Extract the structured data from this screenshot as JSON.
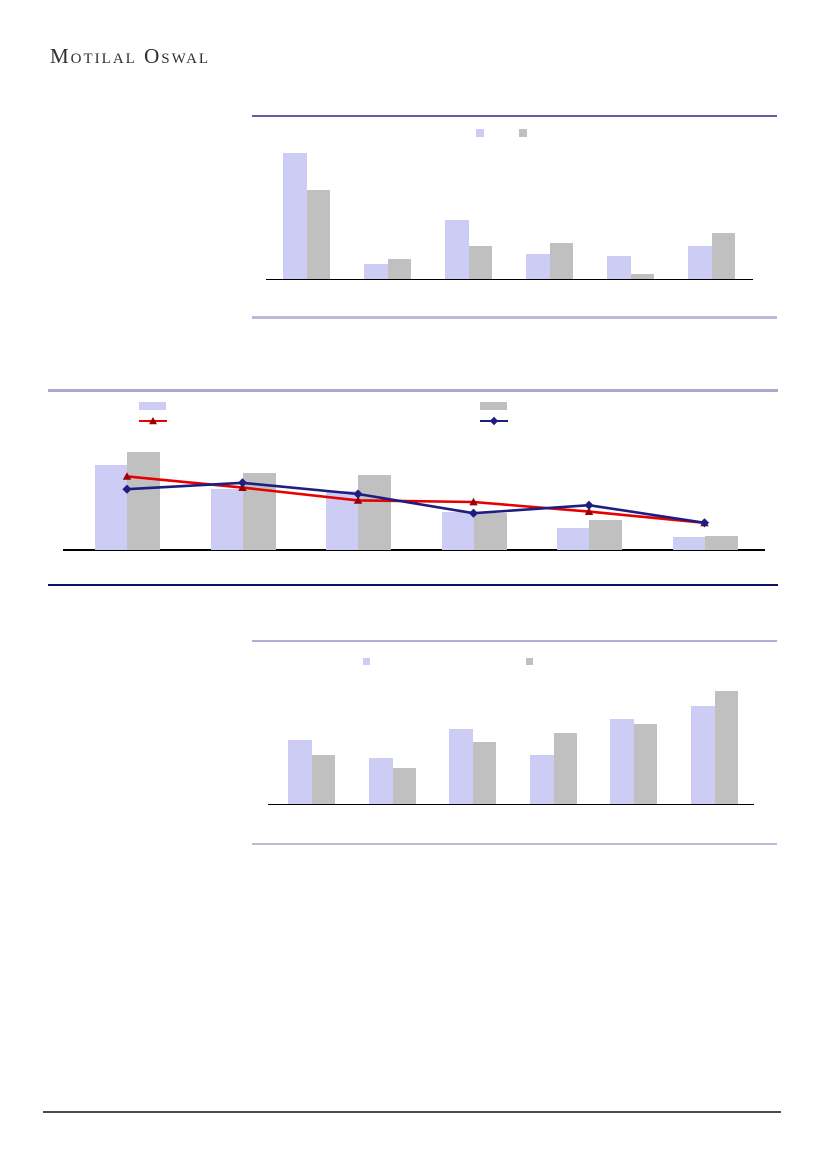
{
  "page": {
    "brand": "Motilal Oswal",
    "background_color": "#ffffff",
    "footer_rule_color": "#4d4d4d"
  },
  "chart_data": [
    {
      "type": "bar",
      "title": "",
      "categories": [
        "",
        "",
        "",
        "",
        "",
        ""
      ],
      "legend_position": "top-center",
      "legend_labels_visible": false,
      "axis_text_visible": false,
      "grid": false,
      "ylim": [
        0,
        100
      ],
      "value_unit": "percent_of_plot_height",
      "top_rule_color": "#675ca8",
      "bottom_rule_color": "#beb8dc",
      "axis_color": "#000000",
      "series": [
        {
          "name": "",
          "kind": "bar",
          "color": "#ccccf5",
          "values": [
            77,
            9,
            36,
            15,
            14,
            20
          ]
        },
        {
          "name": "",
          "kind": "bar",
          "color": "#c0c0c0",
          "values": [
            54,
            12,
            20,
            22,
            3,
            28
          ]
        }
      ]
    },
    {
      "type": "bar+line",
      "title": "",
      "categories": [
        "",
        "",
        "",
        "",
        "",
        ""
      ],
      "legend_position": "top",
      "legend_labels_visible": false,
      "axis_text_visible": false,
      "grid": false,
      "ylim": [
        0,
        100
      ],
      "value_unit": "percent_of_plot_height",
      "top_rule_color": "#aba9ce",
      "bottom_rule_color": "#10106a",
      "axis_color": "#000000",
      "series": [
        {
          "name": "",
          "kind": "bar",
          "color": "#ccccf5",
          "values": [
            53,
            38,
            37,
            24,
            14,
            8
          ]
        },
        {
          "name": "",
          "kind": "bar",
          "color": "#c0c0c0",
          "values": [
            61,
            48,
            47,
            23,
            19,
            9
          ]
        },
        {
          "name": "",
          "kind": "line",
          "color": "#e60000",
          "marker": "triangle",
          "marker_color": "#990000",
          "values": [
            46,
            39,
            31,
            30,
            24,
            17
          ]
        },
        {
          "name": "",
          "kind": "line",
          "color": "#1e1e82",
          "marker": "diamond",
          "marker_color": "#1e1e82",
          "values": [
            38,
            42,
            35,
            23,
            28,
            17
          ]
        }
      ]
    },
    {
      "type": "bar",
      "title": "",
      "categories": [
        "",
        "",
        "",
        "",
        "",
        ""
      ],
      "legend_position": "top-center",
      "legend_labels_visible": false,
      "axis_text_visible": false,
      "grid": false,
      "ylim": [
        0,
        100
      ],
      "value_unit": "percent_of_plot_height",
      "top_rule_color": "#b3aed7",
      "bottom_rule_color": "#beb8dc",
      "axis_color": "#000000",
      "series": [
        {
          "name": "",
          "kind": "bar",
          "color": "#ccccf5",
          "values": [
            39,
            28,
            46,
            30,
            52,
            60
          ]
        },
        {
          "name": "",
          "kind": "bar",
          "color": "#c0c0c0",
          "values": [
            30,
            22,
            38,
            43,
            49,
            69
          ]
        }
      ]
    }
  ]
}
